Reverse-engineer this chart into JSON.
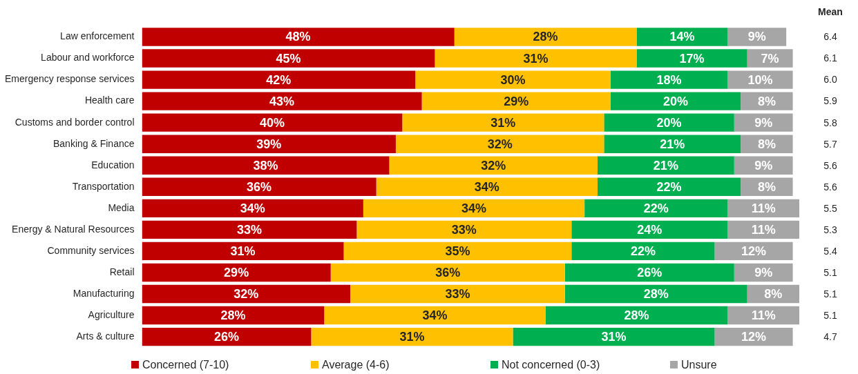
{
  "chart_data": {
    "type": "bar",
    "orientation": "horizontal",
    "stacked": true,
    "grid": false,
    "legend": "bottom",
    "tick_labels": "y",
    "categories": [
      "Law enforcement",
      "Labour and workforce",
      "Emergency response services",
      "Health care",
      "Customs and border control",
      "Banking & Finance",
      "Education",
      "Transportation",
      "Media",
      "Energy & Natural Resources",
      "Community services",
      "Retail",
      "Manufacturing",
      "Agriculture",
      "Arts & culture"
    ],
    "series": [
      {
        "name": "Concerned (7-10)",
        "color": "#c00000",
        "values": [
          48,
          45,
          42,
          43,
          40,
          39,
          38,
          36,
          34,
          33,
          31,
          29,
          32,
          28,
          26
        ],
        "value_labels": [
          "48%",
          "45%",
          "42%",
          "43%",
          "40%",
          "39%",
          "38%",
          "36%",
          "34%",
          "33%",
          "31%",
          "29%",
          "32%",
          "28%",
          "26%"
        ]
      },
      {
        "name": "Average (4-6)",
        "color": "#ffc000",
        "values": [
          28,
          31,
          30,
          29,
          31,
          32,
          32,
          34,
          34,
          33,
          35,
          36,
          33,
          34,
          31
        ],
        "value_labels": [
          "28%",
          "31%",
          "30%",
          "29%",
          "31%",
          "32%",
          "32%",
          "34%",
          "34%",
          "33%",
          "35%",
          "36%",
          "33%",
          "34%",
          "31%"
        ]
      },
      {
        "name": "Not concerned (0-3)",
        "color": "#00b050",
        "values": [
          14,
          17,
          18,
          20,
          20,
          21,
          21,
          22,
          22,
          24,
          22,
          26,
          28,
          28,
          31
        ],
        "value_labels": [
          "14%",
          "17%",
          "18%",
          "20%",
          "20%",
          "21%",
          "21%",
          "22%",
          "22%",
          "24%",
          "22%",
          "26%",
          "28%",
          "28%",
          "31%"
        ]
      },
      {
        "name": "Unsure",
        "color": "#a6a6a6",
        "values": [
          9,
          7,
          10,
          8,
          9,
          8,
          9,
          8,
          11,
          11,
          12,
          9,
          8,
          11,
          12
        ],
        "value_labels": [
          "9%",
          "7%",
          "10%",
          "8%",
          "9%",
          "8%",
          "9%",
          "8%",
          "11%",
          "11%",
          "12%",
          "9%",
          "8%",
          "11%",
          "12%"
        ]
      }
    ],
    "annotations": [
      "Mean",
      "6.4",
      "6.1",
      "6.0",
      "5.9",
      "5.8",
      "5.7",
      "5.6",
      "5.6",
      "5.5",
      "5.3",
      "5.4",
      "5.1",
      "5.1",
      "5.1",
      "4.7"
    ]
  }
}
